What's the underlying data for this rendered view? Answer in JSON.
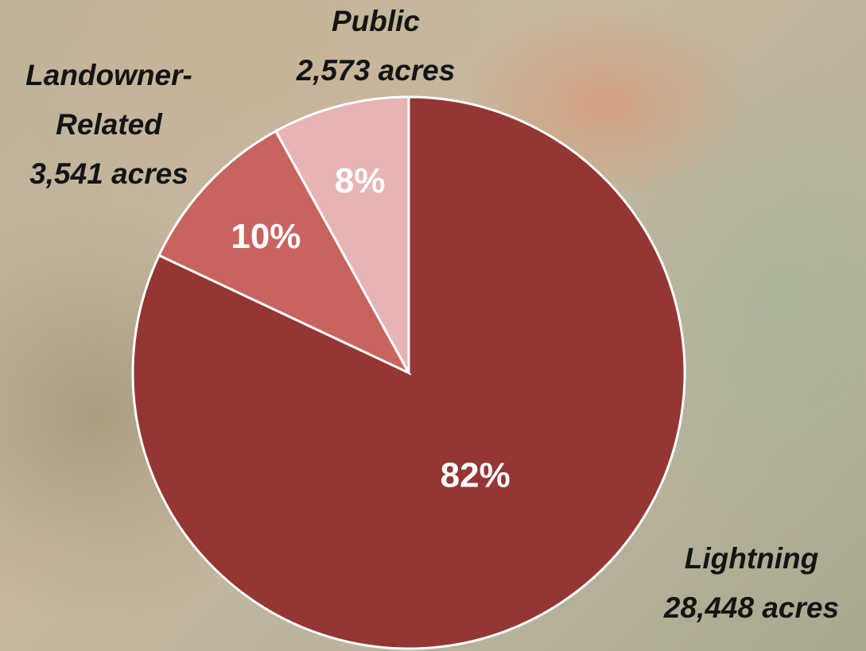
{
  "chart_data": {
    "type": "pie",
    "categories": [
      "Lightning",
      "Landowner-Related",
      "Public"
    ],
    "values": [
      82,
      10,
      8
    ],
    "value_labels": [
      "82%",
      "10%",
      "8%"
    ],
    "acres": [
      28448,
      3541,
      2573
    ],
    "acres_labels": [
      "28,448 acres",
      "3,541 acres",
      "2,573 acres"
    ],
    "colors": [
      "#943634",
      "#c86460",
      "#e6b4b4"
    ],
    "start_angle": 0,
    "direction": "clockwise"
  }
}
